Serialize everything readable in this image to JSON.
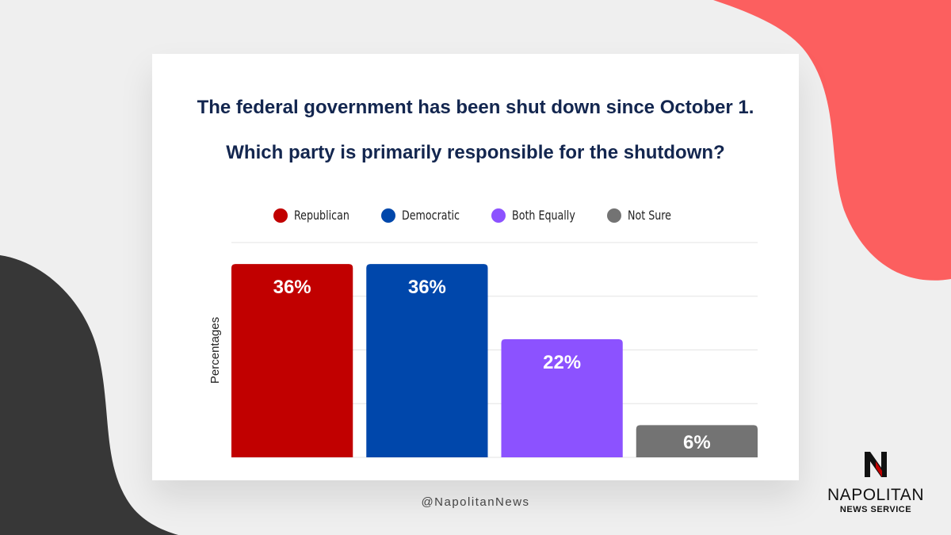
{
  "header": {
    "title_line1": "The federal government has been shut down since October 1.",
    "title_line2": "Which party is primarily responsible for the shutdown?"
  },
  "chart_data": {
    "type": "bar",
    "title": "The federal government has been shut down since October 1. Which party is primarily responsible for the shutdown?",
    "categories": [
      "Republican",
      "Democratic",
      "Both Equally",
      "Not Sure"
    ],
    "values": [
      36,
      36,
      22,
      6
    ],
    "data_labels": [
      "36%",
      "36%",
      "22%",
      "6%"
    ],
    "colors": [
      "#c10000",
      "#0047ab",
      "#8c52ff",
      "#737373"
    ],
    "legend": [
      "Republican",
      "Democratic",
      "Both Equally",
      "Not Sure"
    ],
    "legend_placement": "top-center",
    "xlabel": "",
    "ylabel": "Percentages",
    "ylim": [
      0,
      40
    ],
    "grid": true
  },
  "footer": {
    "handle": "@NapolitanNews"
  },
  "logo": {
    "name": "NAPOLITAN",
    "subtitle": "NEWS SERVICE",
    "icon": "napolitan-n-logo"
  },
  "colors": {
    "title": "#13264f",
    "coral": "#fc5f5f",
    "charcoal": "#373737"
  }
}
